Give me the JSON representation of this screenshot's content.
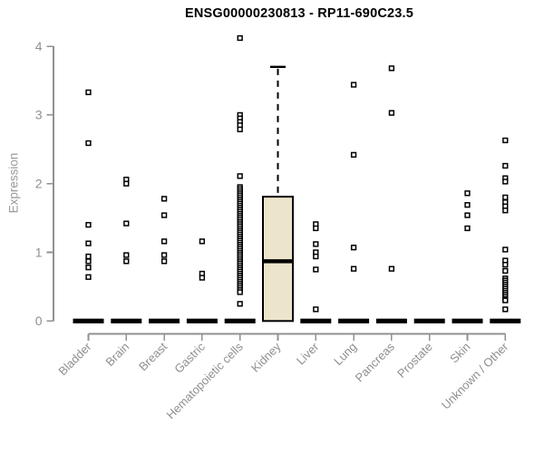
{
  "title": "ENSG00000230813 - RP11-690C23.5",
  "colors": {
    "background": "#ffffff",
    "title": "#000000",
    "axis": "#919191",
    "tick_label": "#8f8f8f",
    "axis_label": "#9b9b9b",
    "box_fill": "#ece5cc",
    "box_border": "#000000",
    "median": "#000000",
    "zero_bar": "#000000",
    "marker_stroke": "#000000",
    "marker_fill": "#ffffff"
  },
  "chart_data": {
    "type": "boxplot",
    "title": "ENSG00000230813 - RP11-690C23.5",
    "xlabel": "",
    "ylabel": "Expression",
    "ylim": [
      0,
      4
    ],
    "yticks": [
      0,
      1,
      2,
      3,
      4
    ],
    "grid": false,
    "legend": false,
    "categories": [
      "Bladder",
      "Brain",
      "Breast",
      "Gastric",
      "Hematopoietic cells",
      "Kidney",
      "Liver",
      "Lung",
      "Pancreas",
      "Prostate",
      "Skin",
      "Unknown / Other"
    ],
    "series": [
      {
        "category": "Bladder",
        "q1": 0,
        "median": 0,
        "q3": 0,
        "whisker_low": 0,
        "whisker_high": 0,
        "outliers": [
          3.33,
          2.59,
          1.4,
          1.13,
          0.94,
          0.87,
          0.78,
          0.64
        ]
      },
      {
        "category": "Brain",
        "q1": 0,
        "median": 0,
        "q3": 0,
        "whisker_low": 0,
        "whisker_high": 0,
        "outliers": [
          2.06,
          2.0,
          1.42,
          0.96,
          0.87
        ]
      },
      {
        "category": "Breast",
        "q1": 0,
        "median": 0,
        "q3": 0,
        "whisker_low": 0,
        "whisker_high": 0,
        "outliers": [
          1.78,
          1.54,
          1.16,
          0.96,
          0.87
        ]
      },
      {
        "category": "Gastric",
        "q1": 0,
        "median": 0,
        "q3": 0,
        "whisker_low": 0,
        "whisker_high": 0,
        "outliers": [
          1.16,
          0.69,
          0.63
        ]
      },
      {
        "category": "Hematopoietic cells",
        "q1": 0,
        "median": 0,
        "q3": 0,
        "whisker_low": 0,
        "whisker_high": 0,
        "outliers": [
          4.12,
          3.0,
          2.95,
          2.9,
          2.85,
          2.79,
          2.11,
          1.95,
          1.92,
          1.89,
          1.86,
          1.83,
          1.8,
          1.77,
          1.74,
          1.71,
          1.68,
          1.65,
          1.62,
          1.59,
          1.56,
          1.53,
          1.5,
          1.47,
          1.44,
          1.41,
          1.38,
          1.35,
          1.32,
          1.29,
          1.26,
          1.23,
          1.2,
          1.17,
          1.14,
          1.11,
          1.08,
          1.05,
          1.02,
          0.99,
          0.96,
          0.93,
          0.9,
          0.87,
          0.84,
          0.81,
          0.78,
          0.75,
          0.72,
          0.69,
          0.66,
          0.63,
          0.6,
          0.57,
          0.54,
          0.51,
          0.48,
          0.45,
          0.42,
          0.25
        ]
      },
      {
        "category": "Kidney",
        "q1": 0,
        "median": 0.87,
        "q3": 1.81,
        "whisker_low": 0,
        "whisker_high": 3.7,
        "outliers": []
      },
      {
        "category": "Liver",
        "q1": 0,
        "median": 0,
        "q3": 0,
        "whisker_low": 0,
        "whisker_high": 0,
        "outliers": [
          1.41,
          1.35,
          1.12,
          1.0,
          0.94,
          0.75,
          0.17
        ]
      },
      {
        "category": "Lung",
        "q1": 0,
        "median": 0,
        "q3": 0,
        "whisker_low": 0,
        "whisker_high": 0,
        "outliers": [
          3.44,
          2.42,
          1.07,
          0.76
        ]
      },
      {
        "category": "Pancreas",
        "q1": 0,
        "median": 0,
        "q3": 0,
        "whisker_low": 0,
        "whisker_high": 0,
        "outliers": [
          3.68,
          3.03,
          0.76
        ]
      },
      {
        "category": "Prostate",
        "q1": 0,
        "median": 0,
        "q3": 0,
        "whisker_low": 0,
        "whisker_high": 0,
        "outliers": []
      },
      {
        "category": "Skin",
        "q1": 0,
        "median": 0,
        "q3": 0,
        "whisker_low": 0,
        "whisker_high": 0,
        "outliers": [
          1.86,
          1.69,
          1.54,
          1.35
        ]
      },
      {
        "category": "Unknown / Other",
        "q1": 0,
        "median": 0,
        "q3": 0,
        "whisker_low": 0,
        "whisker_high": 0,
        "outliers": [
          2.63,
          2.26,
          2.08,
          2.03,
          1.8,
          1.73,
          1.67,
          1.61,
          1.04,
          0.88,
          0.82,
          0.73,
          0.62,
          0.59,
          0.56,
          0.53,
          0.5,
          0.47,
          0.44,
          0.41,
          0.38,
          0.35,
          0.32,
          0.3,
          0.17
        ]
      }
    ]
  }
}
